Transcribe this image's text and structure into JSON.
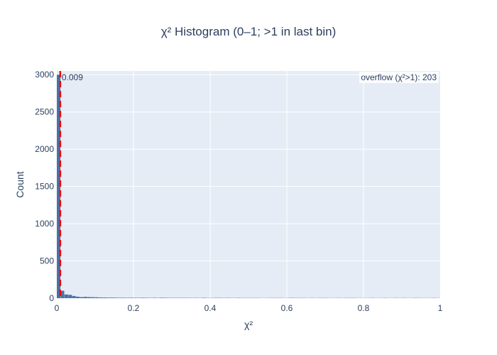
{
  "chart_data": {
    "type": "bar",
    "title": "χ² Histogram (0–1; >1 in last bin)",
    "xlabel": "χ²",
    "ylabel": "Count",
    "xlim": [
      0,
      1
    ],
    "ylim": [
      0,
      3050
    ],
    "grid": true,
    "x_ticks": [
      0,
      0.2,
      0.4,
      0.6,
      0.8,
      1
    ],
    "x_tick_labels": [
      "0",
      "0.2",
      "0.4",
      "0.6",
      "0.8",
      "1"
    ],
    "y_ticks": [
      0,
      500,
      1000,
      1500,
      2000,
      2500,
      3000
    ],
    "y_tick_labels": [
      "0",
      "500",
      "1000",
      "1500",
      "2000",
      "2500",
      "3000"
    ],
    "bin_width": 0.01,
    "bin_counts": [
      3000,
      100,
      50,
      45,
      30,
      20,
      15,
      18,
      15,
      14,
      12,
      10,
      9,
      8,
      8,
      7,
      6,
      6,
      5,
      6,
      5,
      5,
      6,
      5,
      4,
      5,
      4,
      6,
      5,
      4,
      4,
      4,
      4,
      4,
      4,
      3,
      4,
      3,
      5,
      3,
      3,
      4,
      4,
      3,
      4,
      3,
      3,
      4,
      3,
      3,
      3,
      3,
      3,
      2,
      2,
      3,
      3,
      3,
      3,
      2,
      3,
      4,
      3,
      3,
      3,
      2,
      3,
      2,
      3,
      3,
      3,
      2,
      2,
      3,
      2,
      3,
      3,
      3,
      2,
      2,
      2,
      2,
      3,
      2,
      2,
      3,
      2,
      2,
      3,
      2,
      3,
      2,
      2,
      3,
      3,
      2,
      2,
      2,
      3,
      2
    ],
    "threshold_line": {
      "x": 0.009,
      "label": "0.009",
      "color": "#ff0000",
      "dash": "dashed"
    },
    "annotation": {
      "text": "overflow (χ²>1): 203",
      "position": "top-right"
    },
    "colors": {
      "bar": "#4a72a6",
      "plot_bg": "#e5ecf6",
      "grid": "#ffffff",
      "text": "#2a3f5f"
    }
  }
}
